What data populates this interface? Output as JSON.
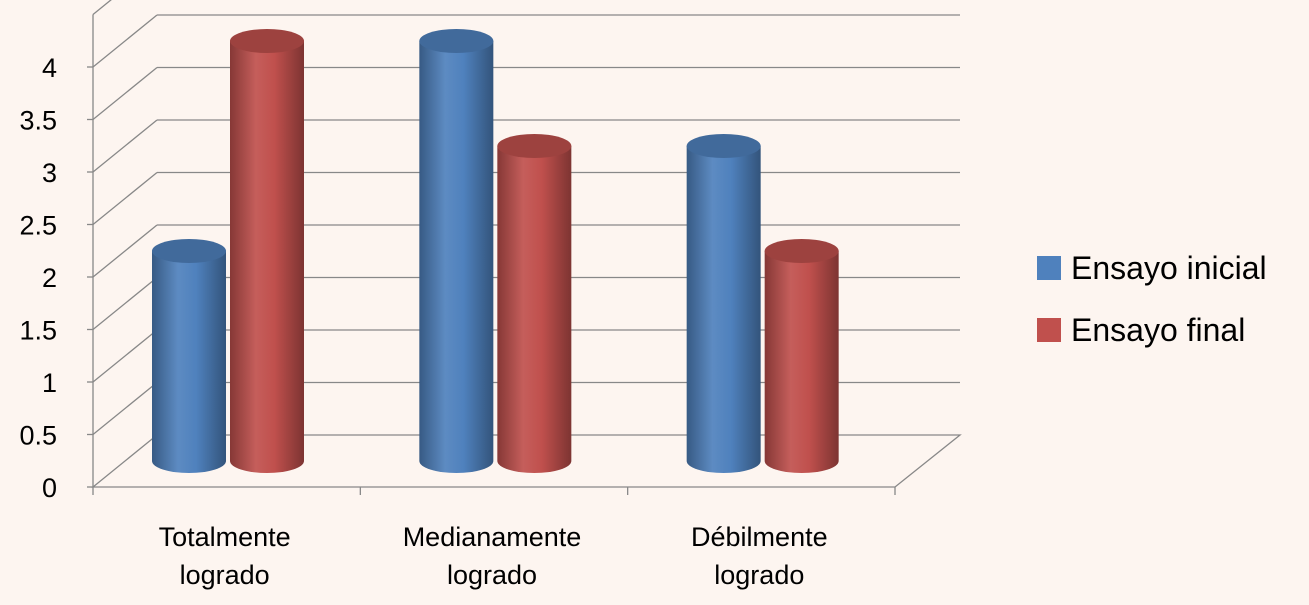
{
  "chart_data": {
    "type": "bar",
    "style": "3d-cylinder",
    "categories": [
      [
        "Totalmente",
        "logrado"
      ],
      [
        "Medianamente",
        "logrado"
      ],
      [
        "Débilmente",
        "logrado"
      ]
    ],
    "series": [
      {
        "name": "Ensayo inicial",
        "values": [
          2,
          4,
          3
        ],
        "color": "#4F81BD"
      },
      {
        "name": "Ensayo final",
        "values": [
          4,
          3,
          2
        ],
        "color": "#C0504D"
      }
    ],
    "ylim": [
      0,
      4.5
    ],
    "yticks": [
      "0",
      "0.5",
      "1",
      "1.5",
      "2",
      "2.5",
      "3",
      "3.5",
      "4"
    ],
    "grid": true,
    "legend": "right",
    "background": "#FDF5F0",
    "gridColor": "#888888",
    "textColor": "#000000"
  }
}
